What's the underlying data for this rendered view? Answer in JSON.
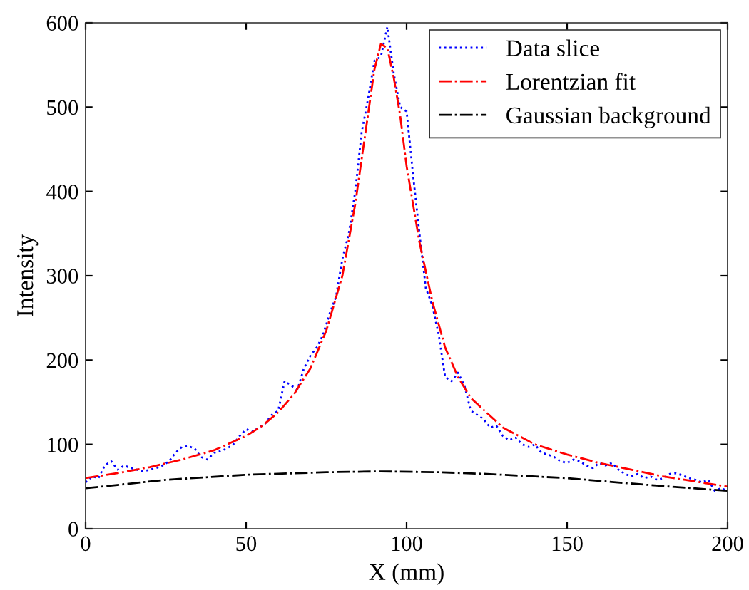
{
  "chart_data": {
    "type": "line",
    "xlabel": "X (mm)",
    "ylabel": "Intensity",
    "xlim": [
      0,
      200
    ],
    "xticks": [
      0,
      50,
      100,
      150,
      200
    ],
    "ylim": [
      0,
      600
    ],
    "yticks": [
      0,
      100,
      200,
      300,
      400,
      500,
      600
    ],
    "grid": false,
    "legend": "top right",
    "marker": "none",
    "series": [
      {
        "name": "Data slice",
        "color": "#0000ff",
        "line_style": "dotted",
        "x": [
          0,
          2,
          4,
          6,
          8,
          10,
          12,
          14,
          16,
          18,
          20,
          22,
          24,
          26,
          28,
          30,
          32,
          34,
          36,
          38,
          40,
          42,
          44,
          46,
          48,
          50,
          52,
          54,
          56,
          58,
          60,
          62,
          64,
          66,
          68,
          70,
          72,
          74,
          76,
          78,
          80,
          82,
          84,
          86,
          88,
          90,
          92,
          94,
          96,
          98,
          100,
          102,
          104,
          106,
          108,
          110,
          112,
          114,
          116,
          118,
          120,
          122,
          124,
          126,
          128,
          130,
          132,
          134,
          136,
          138,
          140,
          142,
          144,
          146,
          148,
          150,
          152,
          154,
          156,
          158,
          160,
          162,
          164,
          166,
          168,
          170,
          172,
          174,
          176,
          178,
          180,
          182,
          184,
          186,
          188,
          190,
          192,
          194,
          196,
          198,
          200
        ],
        "values": [
          55,
          62,
          60,
          75,
          80,
          70,
          75,
          72,
          70,
          68,
          70,
          72,
          75,
          80,
          90,
          97,
          98,
          95,
          85,
          82,
          90,
          92,
          95,
          100,
          110,
          118,
          115,
          120,
          125,
          135,
          140,
          175,
          170,
          165,
          190,
          205,
          215,
          230,
          255,
          275,
          320,
          350,
          400,
          470,
          510,
          555,
          560,
          595,
          540,
          500,
          495,
          420,
          350,
          285,
          265,
          230,
          180,
          175,
          185,
          170,
          140,
          135,
          130,
          120,
          122,
          110,
          105,
          108,
          100,
          97,
          100,
          90,
          88,
          85,
          80,
          78,
          82,
          80,
          75,
          72,
          78,
          75,
          78,
          70,
          65,
          62,
          65,
          60,
          62,
          58,
          60,
          65,
          66,
          63,
          60,
          58,
          55,
          58,
          45,
          48,
          45
        ]
      },
      {
        "name": "Lorentzian fit",
        "color": "#ff0000",
        "line_style": "dashdot",
        "x": [
          0,
          10,
          20,
          30,
          40,
          50,
          55,
          60,
          65,
          70,
          75,
          80,
          84,
          87,
          90,
          92,
          94,
          96,
          98,
          100,
          104,
          108,
          112,
          116,
          120,
          130,
          140,
          150,
          160,
          170,
          180,
          190,
          200
        ],
        "values": [
          60,
          66,
          73,
          82,
          93,
          110,
          122,
          138,
          160,
          190,
          235,
          300,
          385,
          465,
          545,
          575,
          570,
          535,
          490,
          430,
          340,
          270,
          215,
          180,
          155,
          120,
          100,
          88,
          78,
          70,
          62,
          56,
          50
        ]
      },
      {
        "name": "Gaussian background",
        "color": "#000000",
        "line_style": "dashdot",
        "x": [
          0,
          25,
          50,
          75,
          92,
          110,
          125,
          150,
          175,
          200
        ],
        "values": [
          48,
          58,
          64,
          67,
          68,
          67,
          65,
          60,
          52,
          45
        ]
      }
    ]
  }
}
